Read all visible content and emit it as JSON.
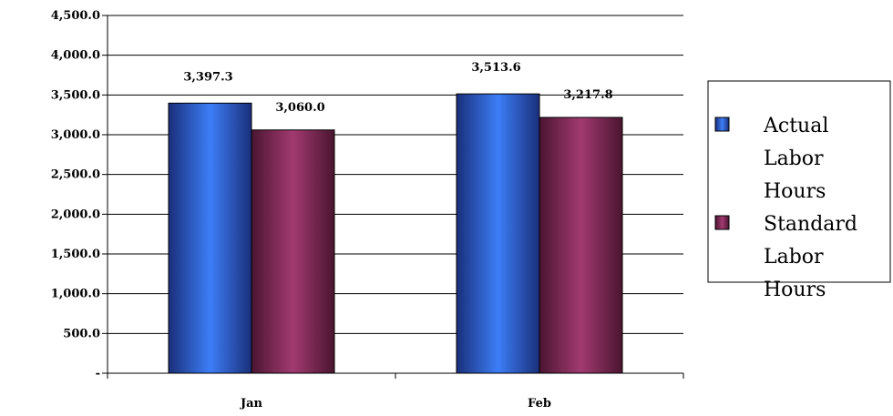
{
  "chart_data": {
    "type": "bar",
    "categories": [
      "Jan",
      "Feb"
    ],
    "series": [
      {
        "name": "Actual Labor Hours",
        "values": [
          3397.3,
          3513.6
        ],
        "value_labels": [
          "3,397.3",
          "3,513.6"
        ]
      },
      {
        "name": "Standard Labor Hours",
        "values": [
          3060.0,
          3217.8
        ],
        "value_labels": [
          "3,060.0",
          "3,217.8"
        ]
      }
    ],
    "ylim": [
      0,
      4500
    ],
    "y_ticks": [
      {
        "value": 0,
        "label": "-"
      },
      {
        "value": 500,
        "label": "500.0"
      },
      {
        "value": 1000,
        "label": "1,000.0"
      },
      {
        "value": 1500,
        "label": "1,500.0"
      },
      {
        "value": 2000,
        "label": "2,000.0"
      },
      {
        "value": 2500,
        "label": "2,500.0"
      },
      {
        "value": 3000,
        "label": "3,000.0"
      },
      {
        "value": 3500,
        "label": "3,500.0"
      },
      {
        "value": 4000,
        "label": "4,000.0"
      },
      {
        "value": 4500,
        "label": "4,500.0"
      }
    ],
    "grid": true,
    "legend_position": "right",
    "colors": {
      "Actual Labor Hours": "#2f62e6",
      "Standard Labor Hours": "#8a2a5a"
    }
  }
}
